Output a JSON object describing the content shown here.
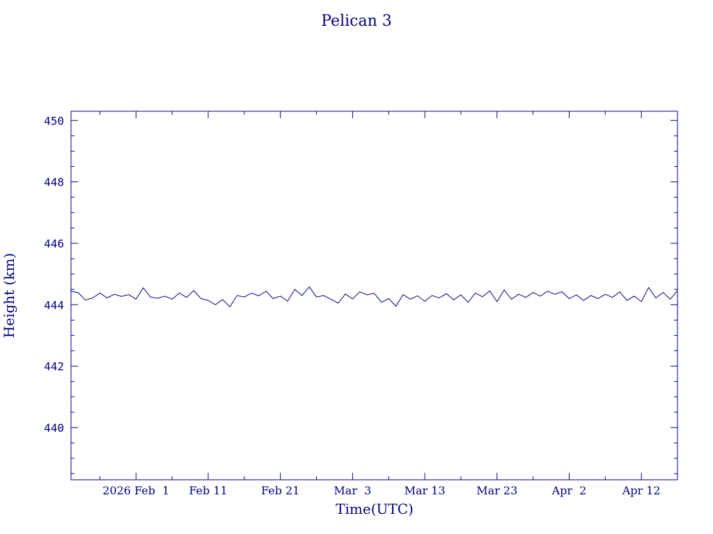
{
  "chart_data": {
    "type": "line",
    "title": "Pelican 3",
    "xlabel": "Time(UTC)",
    "ylabel": "Height (km)",
    "ylim": [
      438.3,
      450.3
    ],
    "xlim": [
      "2026-01-23",
      "2026-04-17"
    ],
    "y_ticks": [
      440,
      442,
      444,
      446,
      448,
      450
    ],
    "x_ticks": [
      {
        "date": "2026-02-01",
        "label": "2026 Feb  1"
      },
      {
        "date": "2026-02-11",
        "label": "Feb 11"
      },
      {
        "date": "2026-02-21",
        "label": "Feb 21"
      },
      {
        "date": "2026-03-03",
        "label": "Mar  3"
      },
      {
        "date": "2026-03-13",
        "label": "Mar 13"
      },
      {
        "date": "2026-03-23",
        "label": "Mar 23"
      },
      {
        "date": "2026-04-02",
        "label": "Apr  2"
      },
      {
        "date": "2026-04-12",
        "label": "Apr 12"
      }
    ],
    "grid": false,
    "color": "#000080",
    "series": [
      {
        "points": [
          [
            "2026-01-23",
            444.44
          ],
          [
            "2026-01-24",
            444.39
          ],
          [
            "2026-01-25",
            444.15
          ],
          [
            "2026-01-26",
            444.22
          ],
          [
            "2026-01-27",
            444.38
          ],
          [
            "2026-01-28",
            444.22
          ],
          [
            "2026-01-29",
            444.34
          ],
          [
            "2026-01-30",
            444.27
          ],
          [
            "2026-01-31",
            444.33
          ],
          [
            "2026-02-01",
            444.18
          ],
          [
            "2026-02-02",
            444.55
          ],
          [
            "2026-02-03",
            444.25
          ],
          [
            "2026-02-04",
            444.21
          ],
          [
            "2026-02-05",
            444.28
          ],
          [
            "2026-02-06",
            444.18
          ],
          [
            "2026-02-07",
            444.38
          ],
          [
            "2026-02-08",
            444.24
          ],
          [
            "2026-02-09",
            444.46
          ],
          [
            "2026-02-10",
            444.2
          ],
          [
            "2026-02-11",
            444.14
          ],
          [
            "2026-02-12",
            444.0
          ],
          [
            "2026-02-13",
            444.17
          ],
          [
            "2026-02-14",
            443.93
          ],
          [
            "2026-02-15",
            444.3
          ],
          [
            "2026-02-16",
            444.25
          ],
          [
            "2026-02-17",
            444.38
          ],
          [
            "2026-02-18",
            444.29
          ],
          [
            "2026-02-19",
            444.44
          ],
          [
            "2026-02-20",
            444.2
          ],
          [
            "2026-02-21",
            444.28
          ],
          [
            "2026-02-22",
            444.12
          ],
          [
            "2026-02-23",
            444.5
          ],
          [
            "2026-02-24",
            444.3
          ],
          [
            "2026-02-25",
            444.58
          ],
          [
            "2026-02-26",
            444.25
          ],
          [
            "2026-02-27",
            444.3
          ],
          [
            "2026-02-28",
            444.18
          ],
          [
            "2026-03-01",
            444.05
          ],
          [
            "2026-03-02",
            444.35
          ],
          [
            "2026-03-03",
            444.19
          ],
          [
            "2026-03-04",
            444.42
          ],
          [
            "2026-03-05",
            444.32
          ],
          [
            "2026-03-06",
            444.37
          ],
          [
            "2026-03-07",
            444.08
          ],
          [
            "2026-03-08",
            444.2
          ],
          [
            "2026-03-09",
            443.95
          ],
          [
            "2026-03-10",
            444.33
          ],
          [
            "2026-03-11",
            444.18
          ],
          [
            "2026-03-12",
            444.29
          ],
          [
            "2026-03-13",
            444.11
          ],
          [
            "2026-03-14",
            444.3
          ],
          [
            "2026-03-15",
            444.22
          ],
          [
            "2026-03-16",
            444.36
          ],
          [
            "2026-03-17",
            444.16
          ],
          [
            "2026-03-18",
            444.32
          ],
          [
            "2026-03-19",
            444.08
          ],
          [
            "2026-03-20",
            444.38
          ],
          [
            "2026-03-21",
            444.26
          ],
          [
            "2026-03-22",
            444.45
          ],
          [
            "2026-03-23",
            444.1
          ],
          [
            "2026-03-24",
            444.48
          ],
          [
            "2026-03-25",
            444.18
          ],
          [
            "2026-03-26",
            444.34
          ],
          [
            "2026-03-27",
            444.24
          ],
          [
            "2026-03-28",
            444.4
          ],
          [
            "2026-03-29",
            444.28
          ],
          [
            "2026-03-30",
            444.44
          ],
          [
            "2026-03-31",
            444.34
          ],
          [
            "2026-04-01",
            444.42
          ],
          [
            "2026-04-02",
            444.2
          ],
          [
            "2026-04-03",
            444.32
          ],
          [
            "2026-04-04",
            444.14
          ],
          [
            "2026-04-05",
            444.3
          ],
          [
            "2026-04-06",
            444.2
          ],
          [
            "2026-04-07",
            444.34
          ],
          [
            "2026-04-08",
            444.24
          ],
          [
            "2026-04-09",
            444.42
          ],
          [
            "2026-04-10",
            444.14
          ],
          [
            "2026-04-11",
            444.28
          ],
          [
            "2026-04-12",
            444.1
          ],
          [
            "2026-04-13",
            444.56
          ],
          [
            "2026-04-14",
            444.22
          ],
          [
            "2026-04-15",
            444.4
          ],
          [
            "2026-04-16",
            444.18
          ],
          [
            "2026-04-17",
            444.46
          ]
        ]
      }
    ]
  }
}
